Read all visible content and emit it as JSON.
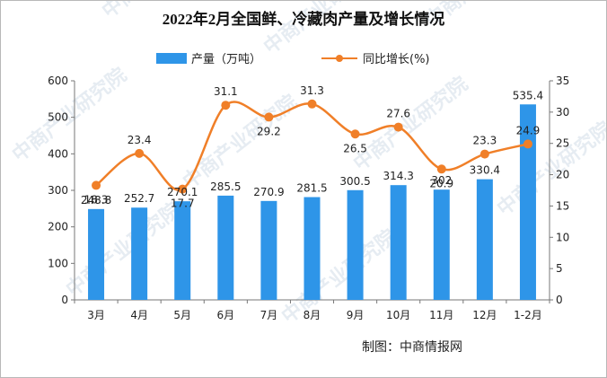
{
  "chart_data": {
    "type": "bar+line",
    "title": "2022年2月全国鲜、冷藏肉产量及增长情况",
    "categories": [
      "3月",
      "4月",
      "5月",
      "6月",
      "7月",
      "8月",
      "9月",
      "10月",
      "11月",
      "12月",
      "1-2月"
    ],
    "series": [
      {
        "name": "产量（万吨）",
        "type": "bar",
        "axis": "left",
        "color": "#2e95e8",
        "values": [
          248.8,
          252.7,
          270.1,
          285.5,
          270.9,
          281.5,
          300.5,
          314.3,
          302,
          330.4,
          535.4
        ]
      },
      {
        "name": "同比增长(%)",
        "type": "line",
        "axis": "right",
        "color": "#f07f28",
        "values": [
          18.3,
          23.4,
          17.7,
          31.1,
          29.2,
          31.3,
          26.5,
          27.6,
          20.9,
          23.3,
          24.9
        ]
      }
    ],
    "y_left": {
      "min": 0,
      "max": 600,
      "step": 100
    },
    "y_right": {
      "min": 0,
      "max": 35,
      "step": 5
    },
    "legend_position": "top-center",
    "grid": false
  },
  "source": "制图：中商情报网",
  "watermark": "中商产业研究院"
}
